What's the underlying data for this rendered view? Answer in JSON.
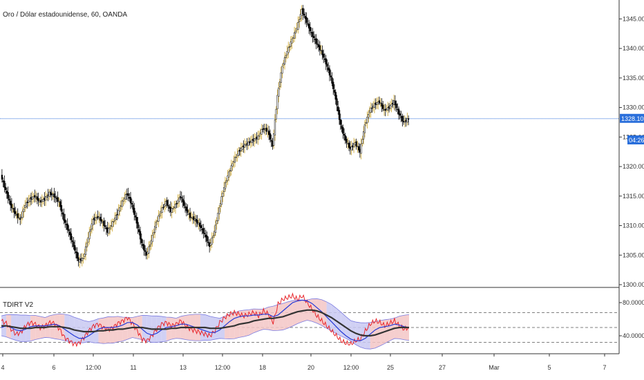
{
  "header": {
    "title": "Oro / Dólar estadounidense, 60, OANDA"
  },
  "indicator": {
    "name": "TDIRT V2",
    "y_ticks": [
      "80.0000",
      "40.0000"
    ]
  },
  "price_axis": {
    "ticks": [
      "1345.000",
      "1340.000",
      "1335.000",
      "1330.000",
      "1325.000",
      "1320.000",
      "1315.000",
      "1310.000",
      "1305.000",
      "1300.000"
    ],
    "current_price_label": "1328.102",
    "countdown_label": "04:26"
  },
  "time_axis": {
    "ticks": [
      "4",
      "6",
      "12:00",
      "11",
      "13",
      "12:00",
      "18",
      "20",
      "12:00",
      "25",
      "27",
      "Mar",
      "5",
      "7"
    ]
  },
  "colors": {
    "current_price_line": "#2a6fdb",
    "candle_up": "#000000",
    "candle_up_wick": "#c9a227",
    "tsi_red": "#e8262b",
    "tsi_blue": "#2439d8",
    "signal_dark": "#333333",
    "band_red_fill": "#f3c6c6",
    "band_blue_fill": "#c8c8f2"
  },
  "chart_data": [
    {
      "type": "candlestick",
      "title": "Oro / Dólar estadounidense, 60, OANDA",
      "ylim": [
        1300,
        1348
      ],
      "current_price": 1328.102,
      "series": [
        {
          "name": "",
          "values": [
            1318.5,
            1316.0,
            1313.5,
            1312.0,
            1311.0,
            1313.5,
            1314.5,
            1315.0,
            1314.0,
            1314.5,
            1315.5,
            1315.0,
            1314.0,
            1311.0,
            1309.0,
            1306.5,
            1304.0,
            1304.5,
            1308.0,
            1311.0,
            1311.5,
            1310.5,
            1309.0,
            1310.5,
            1312.0,
            1314.0,
            1315.5,
            1313.5,
            1310.5,
            1307.0,
            1305.0,
            1307.5,
            1310.5,
            1312.5,
            1314.0,
            1312.5,
            1313.5,
            1315.0,
            1313.0,
            1311.5,
            1311.0,
            1310.0,
            1308.5,
            1306.5,
            1309.0,
            1313.0,
            1316.5,
            1319.0,
            1321.0,
            1322.5,
            1323.5,
            1324.0,
            1324.5,
            1325.0,
            1326.5,
            1326.0,
            1323.5,
            1332.0,
            1337.0,
            1339.5,
            1341.5,
            1343.5,
            1346.5,
            1344.5,
            1342.5,
            1341.0,
            1339.5,
            1337.5,
            1335.0,
            1331.5,
            1327.0,
            1324.5,
            1323.0,
            1324.0,
            1322.5,
            1327.0,
            1329.5,
            1330.5,
            1331.0,
            1329.5,
            1330.0,
            1331.0,
            1329.0,
            1327.5,
            1328.1
          ]
        }
      ]
    },
    {
      "type": "line",
      "title": "TDIRT V2",
      "ylim": [
        20,
        95
      ],
      "series": [
        {
          "name": "",
          "values": [
            58,
            55,
            48,
            42,
            44,
            52,
            56,
            54,
            50,
            52,
            56,
            55,
            48,
            38,
            34,
            30,
            31,
            38,
            46,
            52,
            54,
            50,
            48,
            50,
            55,
            58,
            62,
            55,
            46,
            36,
            34,
            40,
            48,
            54,
            56,
            52,
            54,
            58,
            52,
            48,
            46,
            44,
            42,
            40,
            46,
            56,
            62,
            66,
            68,
            66,
            64,
            66,
            68,
            64,
            70,
            66,
            56,
            78,
            84,
            86,
            88,
            84,
            88,
            80,
            72,
            64,
            58,
            52,
            46,
            40,
            34,
            31,
            30,
            34,
            36,
            46,
            54,
            58,
            56,
            52,
            55,
            58,
            52,
            48,
            50
          ]
        },
        {
          "name": "",
          "values": [
            50,
            52,
            50,
            47,
            46,
            48,
            51,
            52,
            52,
            52,
            53,
            54,
            52,
            48,
            44,
            40,
            37,
            37,
            40,
            44,
            48,
            50,
            50,
            50,
            51,
            53,
            56,
            56,
            53,
            48,
            43,
            41,
            43,
            47,
            50,
            51,
            52,
            54,
            54,
            52,
            50,
            48,
            46,
            44,
            44,
            47,
            52,
            57,
            61,
            63,
            64,
            64,
            65,
            65,
            66,
            66,
            63,
            65,
            70,
            75,
            80,
            82,
            83,
            82,
            79,
            74,
            69,
            63,
            57,
            51,
            45,
            40,
            36,
            34,
            34,
            37,
            42,
            47,
            50,
            51,
            52,
            54,
            53,
            51,
            50
          ]
        },
        {
          "name": "",
          "values": [
            52,
            52,
            51,
            50,
            49,
            49,
            49,
            50,
            50,
            50,
            51,
            51,
            51,
            50,
            49,
            47,
            46,
            45,
            45,
            45,
            46,
            46,
            47,
            47,
            48,
            48,
            49,
            50,
            50,
            50,
            49,
            48,
            48,
            48,
            48,
            49,
            49,
            50,
            50,
            50,
            50,
            50,
            50,
            49,
            49,
            49,
            50,
            51,
            52,
            54,
            55,
            56,
            58,
            59,
            60,
            61,
            61,
            62,
            63,
            65,
            67,
            69,
            70,
            71,
            71,
            70,
            68,
            65,
            62,
            58,
            54,
            50,
            46,
            43,
            41,
            40,
            40,
            41,
            43,
            45,
            47,
            49,
            50,
            50,
            50
          ]
        }
      ]
    }
  ]
}
